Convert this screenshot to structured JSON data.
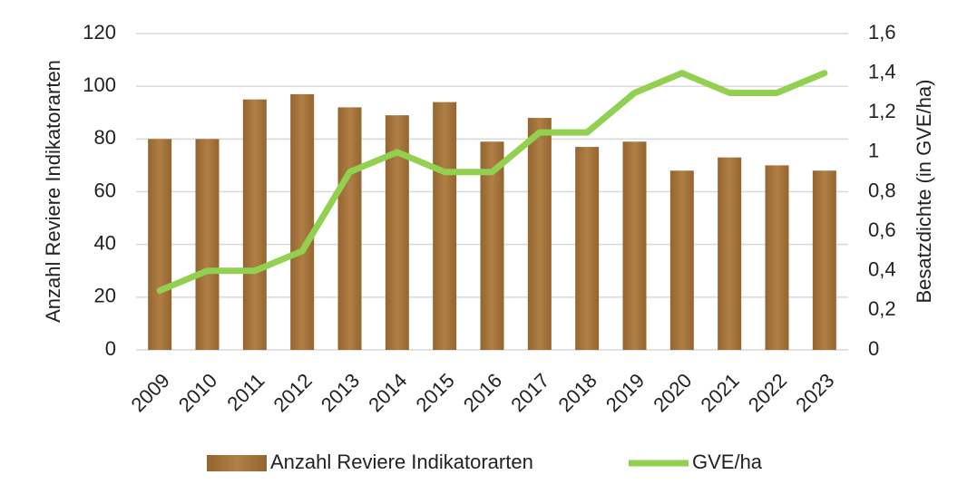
{
  "chart_data": {
    "type": "combo",
    "categories": [
      "2009",
      "2010",
      "2011",
      "2012",
      "2013",
      "2014",
      "2015",
      "2016",
      "2017",
      "2018",
      "2019",
      "2020",
      "2021",
      "2022",
      "2023"
    ],
    "y_label": "Anzahl Reviere Indikatorarten",
    "y2_label": "Besatzdichte (in GVE/ha)",
    "ylim": [
      0,
      120
    ],
    "yticks": [
      0,
      20,
      40,
      60,
      80,
      100,
      120
    ],
    "y2lim": [
      0,
      1.6
    ],
    "y2ticks": [
      0,
      {
        "value": 0.2,
        "label": "0,2"
      },
      {
        "value": 0.4,
        "label": "0,4"
      },
      {
        "value": 0.6,
        "label": "0,6"
      },
      {
        "value": 0.8,
        "label": "0,8"
      },
      1,
      {
        "value": 1.2,
        "label": "1,2"
      },
      {
        "value": 1.4,
        "label": "1,4"
      },
      {
        "value": 1.6,
        "label": "1,6"
      }
    ],
    "grid": true,
    "legend": "bottom",
    "series": [
      {
        "name": "Anzahl Reviere Indikatorarten",
        "type": "bar",
        "color": "#a8763e",
        "values": [
          80,
          80,
          95,
          97,
          92,
          89,
          94,
          79,
          88,
          77,
          79,
          68,
          73,
          70,
          68
        ]
      },
      {
        "name": "GVE/ha",
        "type": "line",
        "axis": "y2",
        "color": "#92d050",
        "values": [
          0.3,
          0.4,
          0.4,
          0.5,
          0.9,
          1.0,
          0.9,
          0.9,
          1.1,
          1.1,
          1.3,
          1.4,
          1.3,
          1.3,
          1.4
        ]
      }
    ]
  }
}
